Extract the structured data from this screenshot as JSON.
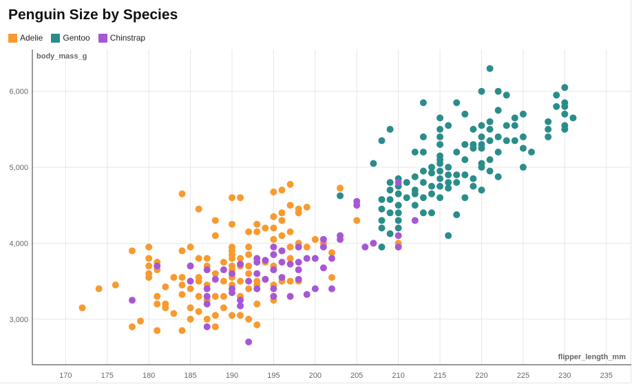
{
  "chart_data": {
    "type": "scatter",
    "title": "Penguin Size by Species",
    "xlabel": "flipper_length_mm",
    "ylabel": "body_mass_g",
    "xlim": [
      166,
      238
    ],
    "ylim": [
      2400,
      6550
    ],
    "xticks": [
      170,
      175,
      180,
      185,
      190,
      195,
      200,
      205,
      210,
      215,
      220,
      225,
      230,
      235
    ],
    "yticks": [
      3000,
      4000,
      5000,
      6000
    ],
    "ytick_labels": [
      "3,000",
      "4,000",
      "5,000",
      "6,000"
    ],
    "grid": true,
    "legend_position": "top-left",
    "series": [
      {
        "name": "Adelie",
        "color": "#f89a2e",
        "points": [
          [
            172,
            3150
          ],
          [
            174,
            3400
          ],
          [
            176,
            3450
          ],
          [
            178,
            2900
          ],
          [
            178,
            3900
          ],
          [
            179,
            2975
          ],
          [
            180,
            3950
          ],
          [
            180,
            3800
          ],
          [
            180,
            3700
          ],
          [
            180,
            3600
          ],
          [
            180,
            3550
          ],
          [
            181,
            3300
          ],
          [
            181,
            3750
          ],
          [
            181,
            3650
          ],
          [
            181,
            3200
          ],
          [
            181,
            2850
          ],
          [
            182,
            3425
          ],
          [
            182,
            3200
          ],
          [
            182,
            3150
          ],
          [
            183,
            3550
          ],
          [
            183,
            3075
          ],
          [
            184,
            4650
          ],
          [
            184,
            3900
          ],
          [
            184,
            3550
          ],
          [
            184,
            3450
          ],
          [
            184,
            3325
          ],
          [
            184,
            2850
          ],
          [
            185,
            3950
          ],
          [
            185,
            3700
          ],
          [
            185,
            3400
          ],
          [
            185,
            3150
          ],
          [
            185,
            3000
          ],
          [
            186,
            4450
          ],
          [
            186,
            3800
          ],
          [
            186,
            3550
          ],
          [
            186,
            3500
          ],
          [
            186,
            3300
          ],
          [
            186,
            3100
          ],
          [
            187,
            3800
          ],
          [
            187,
            3700
          ],
          [
            187,
            3650
          ],
          [
            187,
            3450
          ],
          [
            187,
            3250
          ],
          [
            187,
            3000
          ],
          [
            188,
            4300
          ],
          [
            188,
            4100
          ],
          [
            188,
            3600
          ],
          [
            188,
            3300
          ],
          [
            188,
            3050
          ],
          [
            188,
            2900
          ],
          [
            189,
            3750
          ],
          [
            189,
            3500
          ],
          [
            189,
            3300
          ],
          [
            189,
            3150
          ],
          [
            190,
            4600
          ],
          [
            190,
            4250
          ],
          [
            190,
            3950
          ],
          [
            190,
            3900
          ],
          [
            190,
            3850
          ],
          [
            190,
            3800
          ],
          [
            190,
            3700
          ],
          [
            190,
            3650
          ],
          [
            190,
            3550
          ],
          [
            190,
            3450
          ],
          [
            190,
            3050
          ],
          [
            191,
            4600
          ],
          [
            191,
            3800
          ],
          [
            191,
            3700
          ],
          [
            191,
            3500
          ],
          [
            191,
            3300
          ],
          [
            191,
            3050
          ],
          [
            192,
            4150
          ],
          [
            192,
            3950
          ],
          [
            192,
            3850
          ],
          [
            192,
            3700
          ],
          [
            192,
            3600
          ],
          [
            192,
            3400
          ],
          [
            192,
            3000
          ],
          [
            193,
            4250
          ],
          [
            193,
            4150
          ],
          [
            193,
            3800
          ],
          [
            193,
            3500
          ],
          [
            193,
            3450
          ],
          [
            193,
            3200
          ],
          [
            193,
            2925
          ],
          [
            194,
            4200
          ],
          [
            194,
            3750
          ],
          [
            194,
            3525
          ],
          [
            195,
            4675
          ],
          [
            195,
            4350
          ],
          [
            195,
            4200
          ],
          [
            195,
            4050
          ],
          [
            195,
            3850
          ],
          [
            195,
            3700
          ],
          [
            195,
            3450
          ],
          [
            195,
            3250
          ],
          [
            195,
            3300
          ],
          [
            196,
            4700
          ],
          [
            196,
            4400
          ],
          [
            196,
            4300
          ],
          [
            196,
            4100
          ],
          [
            196,
            3900
          ],
          [
            196,
            3500
          ],
          [
            197,
            4775
          ],
          [
            197,
            4500
          ],
          [
            197,
            4150
          ],
          [
            197,
            3950
          ],
          [
            197,
            3800
          ],
          [
            197,
            3500
          ],
          [
            198,
            4450
          ],
          [
            198,
            4400
          ],
          [
            198,
            4000
          ],
          [
            198,
            3500
          ],
          [
            199,
            4475
          ],
          [
            199,
            3950
          ],
          [
            200,
            4050
          ],
          [
            201,
            4000
          ],
          [
            202,
            3875
          ],
          [
            202,
            3550
          ],
          [
            203,
            4725
          ],
          [
            205,
            4300
          ],
          [
            210,
            4000
          ]
        ]
      },
      {
        "name": "Gentoo",
        "color": "#2a8d8a",
        "points": [
          [
            203,
            4625
          ],
          [
            207,
            5050
          ],
          [
            208,
            5350
          ],
          [
            208,
            4575
          ],
          [
            208,
            4450
          ],
          [
            208,
            4300
          ],
          [
            208,
            4200
          ],
          [
            208,
            3950
          ],
          [
            209,
            5500
          ],
          [
            209,
            4800
          ],
          [
            209,
            4700
          ],
          [
            209,
            4575
          ],
          [
            209,
            4400
          ],
          [
            209,
            4125
          ],
          [
            210,
            4850
          ],
          [
            210,
            4750
          ],
          [
            210,
            4650
          ],
          [
            210,
            4500
          ],
          [
            210,
            4400
          ],
          [
            210,
            4300
          ],
          [
            210,
            4200
          ],
          [
            211,
            4800
          ],
          [
            211,
            4600
          ],
          [
            212,
            5200
          ],
          [
            212,
            4875
          ],
          [
            212,
            4700
          ],
          [
            212,
            4650
          ],
          [
            212,
            4500
          ],
          [
            213,
            5850
          ],
          [
            213,
            5400
          ],
          [
            213,
            5200
          ],
          [
            213,
            4950
          ],
          [
            213,
            4800
          ],
          [
            213,
            4600
          ],
          [
            213,
            4400
          ],
          [
            214,
            5000
          ],
          [
            214,
            4925
          ],
          [
            214,
            4750
          ],
          [
            214,
            4650
          ],
          [
            214,
            4400
          ],
          [
            215,
            5650
          ],
          [
            215,
            5500
          ],
          [
            215,
            5400
          ],
          [
            215,
            5300
          ],
          [
            215,
            5150
          ],
          [
            215,
            5100
          ],
          [
            215,
            5050
          ],
          [
            215,
            4950
          ],
          [
            215,
            4850
          ],
          [
            215,
            4750
          ],
          [
            215,
            4600
          ],
          [
            216,
            5550
          ],
          [
            216,
            5000
          ],
          [
            216,
            4900
          ],
          [
            216,
            4800
          ],
          [
            216,
            4725
          ],
          [
            216,
            4100
          ],
          [
            217,
            5850
          ],
          [
            217,
            5200
          ],
          [
            217,
            4900
          ],
          [
            217,
            4800
          ],
          [
            217,
            4375
          ],
          [
            218,
            5700
          ],
          [
            218,
            5300
          ],
          [
            218,
            5100
          ],
          [
            218,
            4900
          ],
          [
            218,
            4600
          ],
          [
            219,
            5500
          ],
          [
            219,
            5300
          ],
          [
            219,
            5250
          ],
          [
            219,
            4850
          ],
          [
            219,
            4750
          ],
          [
            220,
            6000
          ],
          [
            220,
            5550
          ],
          [
            220,
            5400
          ],
          [
            220,
            5300
          ],
          [
            220,
            5250
          ],
          [
            220,
            5050
          ],
          [
            220,
            5000
          ],
          [
            220,
            4700
          ],
          [
            221,
            6300
          ],
          [
            221,
            5600
          ],
          [
            221,
            5500
          ],
          [
            221,
            5350
          ],
          [
            221,
            5100
          ],
          [
            221,
            4950
          ],
          [
            222,
            6000
          ],
          [
            222,
            5750
          ],
          [
            222,
            5400
          ],
          [
            222,
            5200
          ],
          [
            222,
            4875
          ],
          [
            223,
            5950
          ],
          [
            223,
            5550
          ],
          [
            223,
            5350
          ],
          [
            224,
            5650
          ],
          [
            224,
            5550
          ],
          [
            224,
            5350
          ],
          [
            225,
            5700
          ],
          [
            225,
            5400
          ],
          [
            225,
            5250
          ],
          [
            225,
            5000
          ],
          [
            226,
            5200
          ],
          [
            228,
            5600
          ],
          [
            228,
            5500
          ],
          [
            228,
            5400
          ],
          [
            229,
            5950
          ],
          [
            229,
            5800
          ],
          [
            230,
            6050
          ],
          [
            230,
            5850
          ],
          [
            230,
            5800
          ],
          [
            230,
            5700
          ],
          [
            230,
            5550
          ],
          [
            230,
            5500
          ],
          [
            231,
            5650
          ]
        ]
      },
      {
        "name": "Chinstrap",
        "color": "#a657d6",
        "points": [
          [
            178,
            3250
          ],
          [
            181,
            3700
          ],
          [
            185,
            3700
          ],
          [
            185,
            3500
          ],
          [
            187,
            3650
          ],
          [
            187,
            3400
          ],
          [
            187,
            3300
          ],
          [
            187,
            3200
          ],
          [
            187,
            2900
          ],
          [
            188,
            3525
          ],
          [
            189,
            3650
          ],
          [
            190,
            3600
          ],
          [
            190,
            3400
          ],
          [
            190,
            3350
          ],
          [
            191,
            3725
          ],
          [
            191,
            3250
          ],
          [
            191,
            3175
          ],
          [
            192,
            3500
          ],
          [
            192,
            2700
          ],
          [
            193,
            3800
          ],
          [
            193,
            3750
          ],
          [
            193,
            3600
          ],
          [
            193,
            3400
          ],
          [
            194,
            3525
          ],
          [
            194,
            3775
          ],
          [
            195,
            3950
          ],
          [
            195,
            3850
          ],
          [
            195,
            3650
          ],
          [
            195,
            3400
          ],
          [
            195,
            3300
          ],
          [
            196,
            3900
          ],
          [
            196,
            3550
          ],
          [
            196,
            3750
          ],
          [
            197,
            3725
          ],
          [
            197,
            3300
          ],
          [
            198,
            3950
          ],
          [
            198,
            3750
          ],
          [
            198,
            3650
          ],
          [
            198,
            3525
          ],
          [
            199,
            3800
          ],
          [
            199,
            3325
          ],
          [
            200,
            3800
          ],
          [
            200,
            3400
          ],
          [
            201,
            3950
          ],
          [
            201,
            4050
          ],
          [
            201,
            3675
          ],
          [
            202,
            3800
          ],
          [
            202,
            3400
          ],
          [
            203,
            4100
          ],
          [
            203,
            4050
          ],
          [
            205,
            4550
          ],
          [
            205,
            4500
          ],
          [
            206,
            3950
          ],
          [
            207,
            4000
          ],
          [
            210,
            4800
          ],
          [
            210,
            3950
          ],
          [
            210,
            4100
          ],
          [
            212,
            4300
          ]
        ]
      }
    ]
  }
}
